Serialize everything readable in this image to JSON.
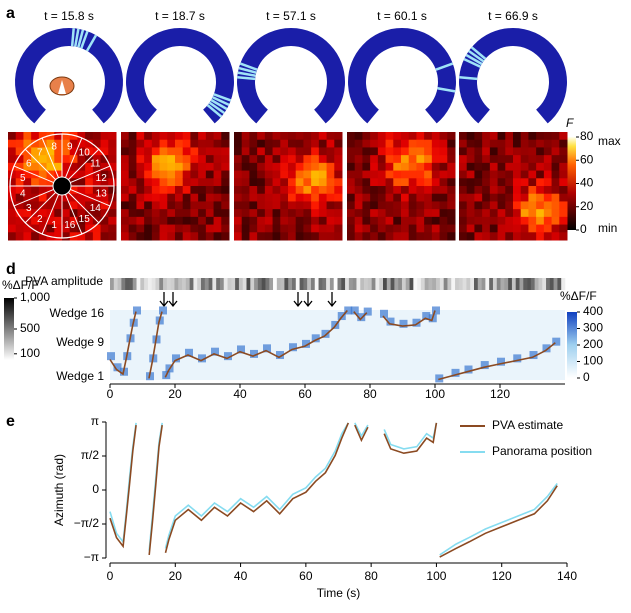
{
  "panel_a": {
    "label": "a",
    "times": [
      "t = 15.8 s",
      "t = 18.7 s",
      "t = 57.1 s",
      "t = 60.1 s",
      "t = 66.9 s"
    ]
  },
  "panel_images": {
    "wedges": [
      "1",
      "2",
      "3",
      "4",
      "5",
      "6",
      "7",
      "8",
      "9",
      "10",
      "11",
      "12",
      "13",
      "14",
      "15",
      "16"
    ],
    "colorbar": {
      "title": "F",
      "ylim": [
        0,
        80
      ],
      "yticks": [
        0,
        20,
        40,
        60,
        80
      ],
      "max_label": "max",
      "min_label": "min"
    }
  },
  "panel_d": {
    "label": "d",
    "amplitude_label": "PVA amplitude",
    "amplitude_colorbar": {
      "title": "%ΔF/F",
      "ylim": [
        0,
        1000
      ],
      "yticks": [
        {
          "value": 1000,
          "label": "1,000"
        },
        500,
        100
      ]
    },
    "wedge_labels": [
      "Wedge 16",
      "Wedge 9",
      "Wedge 1"
    ],
    "colorbar": {
      "title": "%ΔF/F",
      "ylim": [
        0,
        400
      ],
      "yticks": [
        0,
        100,
        200,
        300,
        400
      ]
    },
    "xlim": [
      0,
      140
    ],
    "xticks": [
      0,
      20,
      40,
      60,
      80,
      100,
      120
    ]
  },
  "chart_data": {
    "type": "line",
    "label": "e",
    "xlabel": "Time (s)",
    "ylabel": "Azimuth (rad)",
    "xlim": [
      0,
      140
    ],
    "xticks": [
      0,
      20,
      40,
      60,
      80,
      100,
      120,
      140
    ],
    "ylim": [
      -3.1416,
      3.1416
    ],
    "yticks": [
      {
        "value": -3.1416,
        "label": "−π"
      },
      {
        "value": -1.5708,
        "label": "−π/2"
      },
      0,
      {
        "value": 1.5708,
        "label": "π/2"
      },
      {
        "value": 3.1416,
        "label": "π"
      }
    ],
    "x": [
      0,
      2,
      4,
      5,
      6,
      7,
      8,
      9,
      12,
      13,
      14,
      15,
      16,
      16.5,
      17,
      18,
      20,
      24,
      28,
      32,
      36,
      40,
      44,
      48,
      52,
      56,
      60,
      63,
      66,
      69,
      71,
      73,
      74,
      75,
      77,
      79,
      80,
      84,
      86,
      90,
      94,
      97,
      99,
      100,
      100.5,
      101,
      106,
      110,
      115,
      120,
      125,
      130,
      134,
      137
    ],
    "series": [
      {
        "name": "PVA estimate",
        "color": "#8b4a22",
        "values": [
          -1.3,
          -2.2,
          -2.6,
          -1.2,
          0.3,
          1.8,
          3.0,
          null,
          -3.0,
          -1.5,
          0.2,
          2.0,
          3.0,
          null,
          -2.9,
          -2.3,
          -1.4,
          -0.9,
          -1.4,
          -0.8,
          -1.2,
          -0.6,
          -1.0,
          -0.5,
          -1.1,
          -0.4,
          -0.1,
          0.4,
          0.8,
          1.6,
          2.4,
          3.1,
          null,
          3.0,
          2.3,
          2.9,
          null,
          2.6,
          1.9,
          1.7,
          1.8,
          2.4,
          2.2,
          3.1,
          null,
          -3.1,
          -2.7,
          -2.4,
          -2.0,
          -1.7,
          -1.4,
          -1.1,
          -0.5,
          0.2
        ]
      },
      {
        "name": "Panorama position",
        "color": "#86dcf0",
        "values": [
          -1.0,
          -2.0,
          -2.4,
          -1.0,
          0.6,
          2.0,
          3.1,
          null,
          -2.8,
          -1.2,
          0.5,
          2.2,
          3.1,
          null,
          -2.7,
          -2.1,
          -1.2,
          -0.7,
          -1.2,
          -0.6,
          -1.0,
          -0.4,
          -0.8,
          -0.3,
          -0.9,
          -0.2,
          0.1,
          0.6,
          1.0,
          1.8,
          2.6,
          3.1,
          null,
          3.1,
          2.5,
          3.0,
          null,
          2.8,
          2.1,
          1.9,
          2.0,
          2.6,
          2.4,
          3.1,
          null,
          -3.0,
          -2.5,
          -2.2,
          -1.8,
          -1.5,
          -1.2,
          -0.9,
          -0.3,
          0.3
        ]
      }
    ]
  }
}
